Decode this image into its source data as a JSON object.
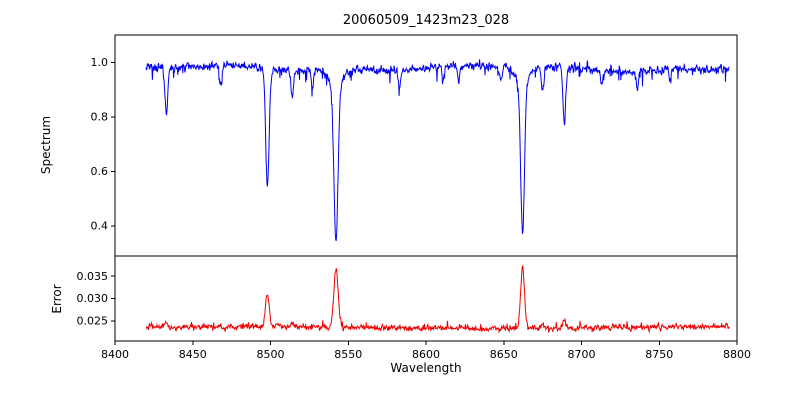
{
  "chart_data": {
    "type": "line",
    "title": "20060509_1423m23_028",
    "xlabel": "Wavelength",
    "background": "#ffffff",
    "axis_color": "#000000",
    "xlim": [
      8400,
      8800
    ],
    "xticks": {
      "values": [
        8400,
        8450,
        8500,
        8550,
        8600,
        8650,
        8700,
        8750,
        8800
      ],
      "labels": [
        "8400",
        "8450",
        "8500",
        "8550",
        "8600",
        "8650",
        "8700",
        "8750",
        "8800"
      ]
    },
    "x_range": [
      8420,
      8795
    ],
    "n_points": 1400,
    "seed": 20060509,
    "panels": [
      {
        "name": "spectrum",
        "ylabel": "Spectrum",
        "color": "#0000ee",
        "ylim": [
          0.29,
          1.1
        ],
        "yticks": {
          "values": [
            0.4,
            0.6,
            0.8,
            1.0
          ],
          "labels": [
            "0.4",
            "0.6",
            "0.8",
            "1.0"
          ]
        },
        "continuum": 0.978,
        "noise_sigma": 0.009,
        "dip_prob": 0.05,
        "dip_max": 0.045,
        "absorption_lines": [
          {
            "center": 8498.0,
            "depth": 0.445,
            "width": 1.1
          },
          {
            "center": 8542.1,
            "depth": 0.62,
            "width": 1.3
          },
          {
            "center": 8542.1,
            "depth": 0.07,
            "width": 4.0
          },
          {
            "center": 8662.1,
            "depth": 0.6,
            "width": 1.2
          },
          {
            "center": 8662.1,
            "depth": 0.06,
            "width": 4.0
          },
          {
            "center": 8433.0,
            "depth": 0.17,
            "width": 0.9
          },
          {
            "center": 8468.0,
            "depth": 0.07,
            "width": 0.8
          },
          {
            "center": 8514.0,
            "depth": 0.1,
            "width": 0.8
          },
          {
            "center": 8527.0,
            "depth": 0.06,
            "width": 0.8
          },
          {
            "center": 8583.0,
            "depth": 0.06,
            "width": 0.7
          },
          {
            "center": 8611.0,
            "depth": 0.05,
            "width": 0.7
          },
          {
            "center": 8621.0,
            "depth": 0.06,
            "width": 0.7
          },
          {
            "center": 8648.0,
            "depth": 0.05,
            "width": 0.7
          },
          {
            "center": 8675.0,
            "depth": 0.09,
            "width": 0.8
          },
          {
            "center": 8689.0,
            "depth": 0.21,
            "width": 0.9
          },
          {
            "center": 8713.0,
            "depth": 0.06,
            "width": 0.7
          },
          {
            "center": 8736.0,
            "depth": 0.07,
            "width": 0.7
          },
          {
            "center": 8757.0,
            "depth": 0.05,
            "width": 0.7
          }
        ]
      },
      {
        "name": "error",
        "ylabel": "Error",
        "color": "#ee0000",
        "ylim": [
          0.0205,
          0.0395
        ],
        "yticks": {
          "values": [
            0.025,
            0.03,
            0.035
          ],
          "labels": [
            "0.025",
            "0.030",
            "0.035"
          ]
        },
        "baseline": 0.0235,
        "noise_sigma": 0.00035,
        "spike_prob": 0.04,
        "spike_max": 0.0012,
        "peaks": [
          {
            "center": 8498.0,
            "height": 0.0075,
            "width": 1.2
          },
          {
            "center": 8542.1,
            "height": 0.0128,
            "width": 1.4
          },
          {
            "center": 8662.1,
            "height": 0.014,
            "width": 1.2
          },
          {
            "center": 8433.0,
            "height": 0.0012,
            "width": 1.0
          },
          {
            "center": 8514.0,
            "height": 0.0008,
            "width": 0.9
          },
          {
            "center": 8675.0,
            "height": 0.0007,
            "width": 0.9
          },
          {
            "center": 8689.0,
            "height": 0.0018,
            "width": 1.0
          }
        ]
      }
    ]
  }
}
